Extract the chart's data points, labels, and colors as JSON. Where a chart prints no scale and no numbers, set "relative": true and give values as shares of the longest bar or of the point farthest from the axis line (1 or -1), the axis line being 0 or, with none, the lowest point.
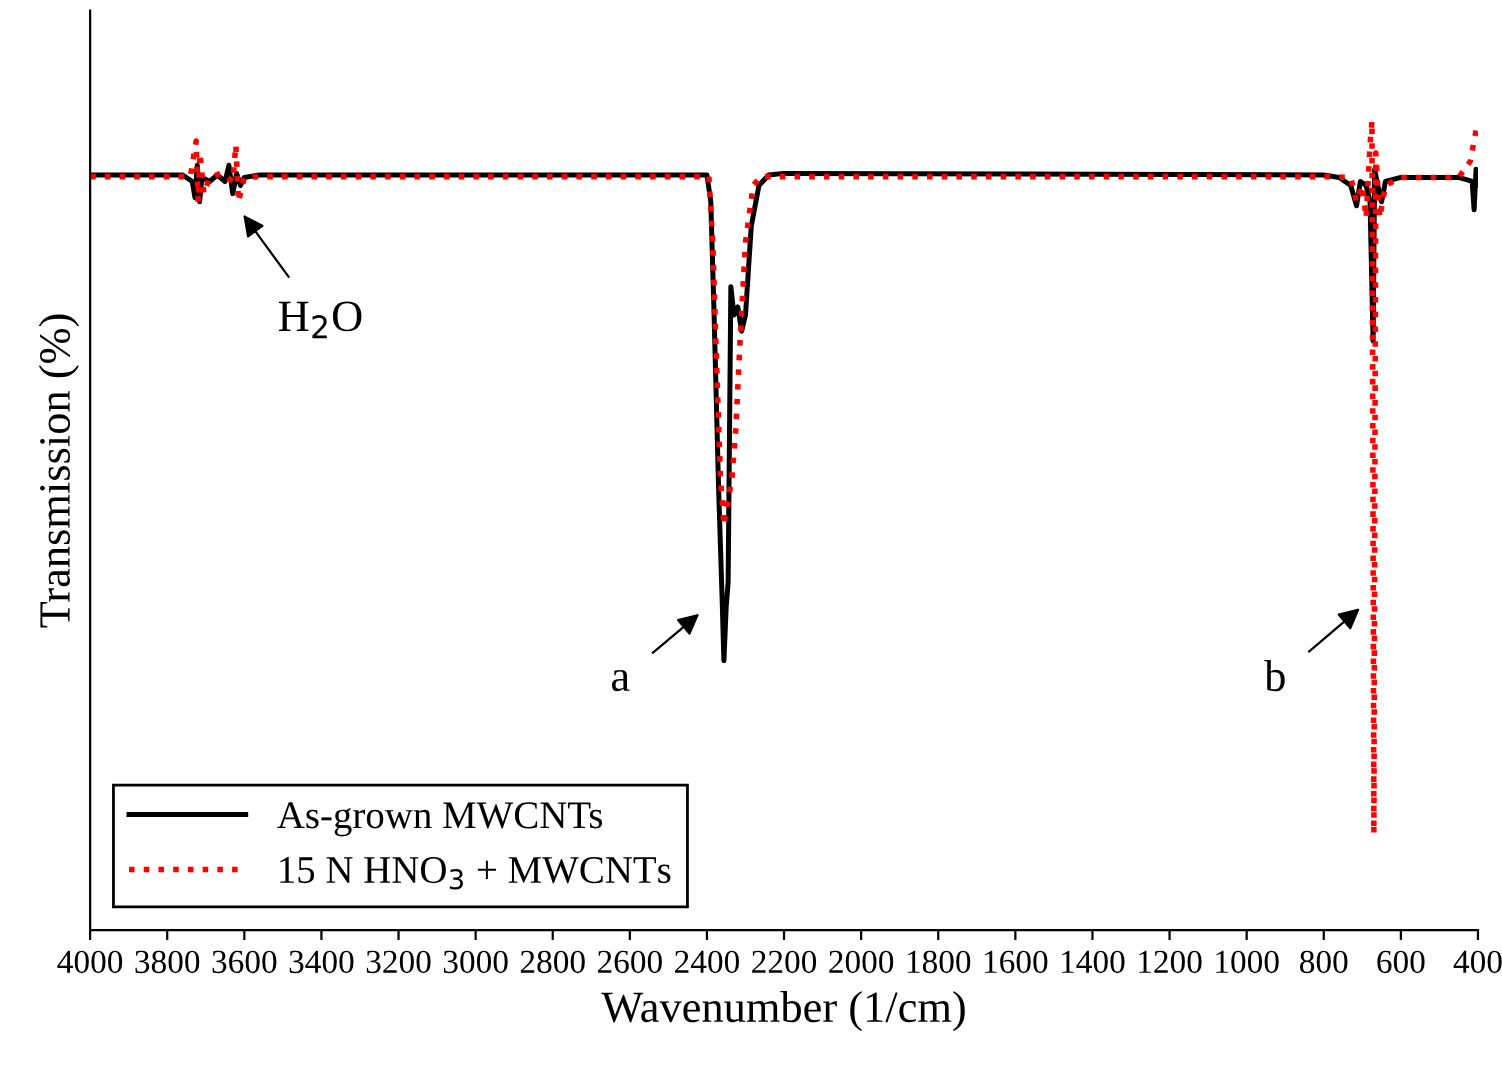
{
  "chart_data": {
    "type": "line",
    "relative": true,
    "xlabel": "Wavenumber (1/cm)",
    "ylabel": "Transmission (%)",
    "xlim": [
      4000,
      400
    ],
    "xticks": [
      4000,
      3800,
      3600,
      3400,
      3200,
      3000,
      2800,
      2600,
      2400,
      2200,
      2000,
      1800,
      1600,
      1400,
      1200,
      1000,
      800,
      600,
      400
    ],
    "legend": "bottom left",
    "grid": false,
    "tick_labels": "x",
    "series": [
      {
        "name": "As-grown MWCNTs",
        "color": "#000000",
        "line_style": "solid",
        "x": [
          4000,
          3760,
          3735,
          3728,
          3722,
          3716,
          3710,
          3690,
          3670,
          3650,
          3640,
          3630,
          3620,
          3610,
          3600,
          3560,
          2400,
          2390,
          2382,
          2370,
          2360,
          2356,
          2350,
          2345,
          2338,
          2330,
          2320,
          2310,
          2300,
          2285,
          2265,
          2240,
          2200,
          800,
          760,
          730,
          715,
          705,
          690,
          680,
          672,
          668,
          660,
          650,
          640,
          600,
          450,
          415,
          410,
          405,
          400
        ],
        "values": [
          0.933,
          0.933,
          0.925,
          0.905,
          0.945,
          0.9,
          0.93,
          0.925,
          0.933,
          0.925,
          0.945,
          0.91,
          0.935,
          0.92,
          0.93,
          0.933,
          0.933,
          0.9,
          0.77,
          0.55,
          0.4,
          0.333,
          0.4,
          0.43,
          0.795,
          0.76,
          0.77,
          0.74,
          0.76,
          0.87,
          0.92,
          0.933,
          0.935,
          0.933,
          0.93,
          0.92,
          0.895,
          0.925,
          0.92,
          0.9,
          0.728,
          0.94,
          0.92,
          0.9,
          0.925,
          0.93,
          0.93,
          0.925,
          0.89,
          0.94,
          0.92
        ]
      },
      {
        "name": "15 N HNO$_{3}$ + MWCNTs",
        "color": "#ff0000",
        "line_style": "dotted",
        "x": [
          4000,
          3740,
          3725,
          3720,
          3715,
          3705,
          3690,
          3660,
          3630,
          3622,
          3615,
          3600,
          3560,
          2395,
          2385,
          2375,
          2365,
          2356,
          2345,
          2335,
          2325,
          2315,
          2300,
          2280,
          2260,
          800,
          730,
          715,
          700,
          690,
          680,
          675,
          670,
          665,
          655,
          640,
          600,
          450,
          420,
          405
        ],
        "values": [
          0.931,
          0.931,
          0.975,
          0.9,
          0.96,
          0.91,
          0.93,
          0.935,
          0.925,
          0.97,
          0.9,
          0.93,
          0.931,
          0.931,
          0.85,
          0.7,
          0.56,
          0.5,
          0.53,
          0.56,
          0.62,
          0.72,
          0.85,
          0.92,
          0.931,
          0.931,
          0.93,
          0.9,
          0.92,
          0.88,
          0.97,
          1.0,
          0.119,
          0.96,
          0.88,
          0.92,
          0.93,
          0.93,
          0.95,
          0.988
        ]
      }
    ],
    "annotations": [
      "H$_{2}$O",
      "a",
      "b"
    ]
  }
}
